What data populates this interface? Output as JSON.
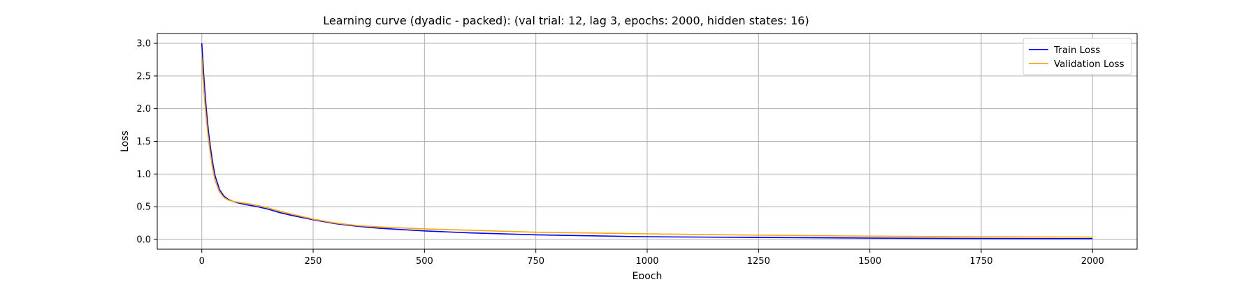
{
  "chart_data": {
    "type": "line",
    "title": "Learning curve (dyadic - packed): (val trial: 12, lag 3, epochs: 2000, hidden states: 16)",
    "xlabel": "Epoch",
    "ylabel": "Loss",
    "xlim": [
      -100,
      2100
    ],
    "ylim": [
      -0.15,
      3.15
    ],
    "x_ticks": [
      0,
      250,
      500,
      750,
      1000,
      1250,
      1500,
      1750,
      2000
    ],
    "x_tick_labels": [
      "0",
      "250",
      "500",
      "750",
      "1000",
      "1250",
      "1500",
      "1750",
      "2000"
    ],
    "y_ticks": [
      0.0,
      0.5,
      1.0,
      1.5,
      2.0,
      2.5,
      3.0
    ],
    "y_tick_labels": [
      "0.0",
      "0.5",
      "1.0",
      "1.5",
      "2.0",
      "2.5",
      "3.0"
    ],
    "grid": true,
    "legend_position": "top-right",
    "series": [
      {
        "name": "Train Loss",
        "color": "#0000ff",
        "x": [
          0,
          5,
          10,
          15,
          20,
          25,
          30,
          40,
          50,
          60,
          70,
          80,
          100,
          125,
          150,
          175,
          200,
          250,
          300,
          350,
          400,
          500,
          600,
          750,
          1000,
          1250,
          1500,
          1750,
          2000
        ],
        "y": [
          3.0,
          2.45,
          2.0,
          1.65,
          1.38,
          1.15,
          0.97,
          0.76,
          0.66,
          0.61,
          0.58,
          0.56,
          0.53,
          0.5,
          0.46,
          0.41,
          0.37,
          0.3,
          0.24,
          0.2,
          0.17,
          0.13,
          0.1,
          0.07,
          0.04,
          0.03,
          0.02,
          0.015,
          0.012
        ]
      },
      {
        "name": "Validation Loss",
        "color": "#ffa500",
        "x": [
          0,
          5,
          10,
          15,
          20,
          25,
          30,
          40,
          50,
          60,
          70,
          80,
          100,
          125,
          150,
          175,
          200,
          250,
          300,
          350,
          400,
          500,
          600,
          750,
          1000,
          1250,
          1500,
          1750,
          2000
        ],
        "y": [
          2.78,
          2.25,
          1.85,
          1.53,
          1.27,
          1.06,
          0.9,
          0.72,
          0.64,
          0.6,
          0.58,
          0.57,
          0.55,
          0.52,
          0.48,
          0.43,
          0.39,
          0.31,
          0.25,
          0.21,
          0.19,
          0.16,
          0.14,
          0.11,
          0.085,
          0.065,
          0.05,
          0.04,
          0.035
        ]
      }
    ]
  }
}
